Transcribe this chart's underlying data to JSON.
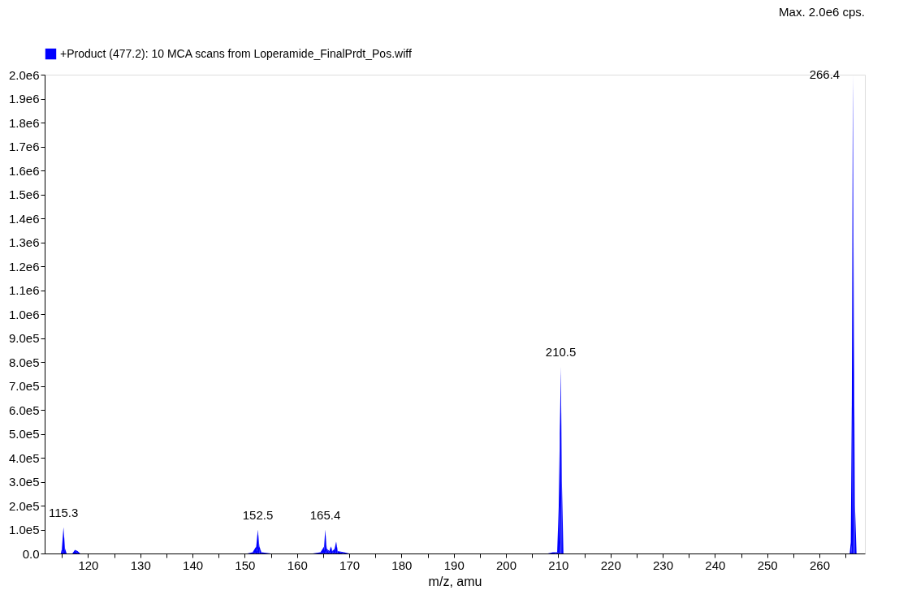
{
  "chart_data": {
    "type": "area",
    "title": "Max. 2.0e6 cps.",
    "xlabel": "m/z, amu",
    "series": [
      {
        "name": "+Product (477.2): 10 MCA scans from Loperamide_FinalPrdt_Pos.wiff",
        "color": "#0000ff",
        "x": [
          111.8,
          114.8,
          115.0,
          115.3,
          115.6,
          115.9,
          117.0,
          117.5,
          118.0,
          118.5,
          150.5,
          151.5,
          152.2,
          152.5,
          152.8,
          153.2,
          155.0,
          163.0,
          164.5,
          165.2,
          165.4,
          165.7,
          166.2,
          166.5,
          166.8,
          167.2,
          167.5,
          167.8,
          169.0,
          170.0,
          208.0,
          209.0,
          209.8,
          210.1,
          210.3,
          210.5,
          210.7,
          211.0,
          265.8,
          266.0,
          266.2,
          266.4,
          266.6,
          266.8,
          267.1,
          268.5
        ],
        "values": [
          0,
          0,
          20000,
          110000,
          20000,
          0,
          0,
          15000,
          10000,
          0,
          0,
          5000,
          30000,
          100000,
          30000,
          5000,
          0,
          0,
          5000,
          30000,
          100000,
          20000,
          10000,
          30000,
          10000,
          20000,
          50000,
          10000,
          5000,
          0,
          0,
          5000,
          5000,
          200000,
          500000,
          780000,
          300000,
          0,
          0,
          50000,
          650000,
          2000000,
          900000,
          200000,
          0,
          0
        ]
      }
    ],
    "annotations": [
      {
        "text": "115.3",
        "x": 115.3,
        "y": 110000
      },
      {
        "text": "152.5",
        "x": 152.5,
        "y": 100000
      },
      {
        "text": "165.4",
        "x": 165.4,
        "y": 100000
      },
      {
        "text": "210.5",
        "x": 210.5,
        "y": 780000
      },
      {
        "text": "266.4",
        "x": 266.4,
        "y": 2000000
      }
    ],
    "xlim": [
      111.7,
      268.7
    ],
    "ylim": [
      0,
      2000000
    ],
    "xticks": [
      {
        "value": 115,
        "label": null
      },
      120,
      {
        "value": 125,
        "label": null
      },
      130,
      {
        "value": 135,
        "label": null
      },
      140,
      {
        "value": 145,
        "label": null
      },
      150,
      {
        "value": 155,
        "label": null
      },
      160,
      {
        "value": 165,
        "label": null
      },
      170,
      {
        "value": 175,
        "label": null
      },
      180,
      {
        "value": 185,
        "label": null
      },
      190,
      {
        "value": 195,
        "label": null
      },
      200,
      {
        "value": 205,
        "label": null
      },
      210,
      {
        "value": 215,
        "label": null
      },
      220,
      {
        "value": 225,
        "label": null
      },
      230,
      {
        "value": 235,
        "label": null
      },
      240,
      {
        "value": 245,
        "label": null
      },
      250,
      {
        "value": 255,
        "label": null
      },
      260,
      {
        "value": 265,
        "label": null
      }
    ],
    "yticks": [
      {
        "value": 0,
        "label": "0.0"
      },
      {
        "value": 100000,
        "label": "1.0e5"
      },
      {
        "value": 200000,
        "label": "2.0e5"
      },
      {
        "value": 300000,
        "label": "3.0e5"
      },
      {
        "value": 400000,
        "label": "4.0e5"
      },
      {
        "value": 500000,
        "label": "5.0e5"
      },
      {
        "value": 600000,
        "label": "6.0e5"
      },
      {
        "value": 700000,
        "label": "7.0e5"
      },
      {
        "value": 800000,
        "label": "8.0e5"
      },
      {
        "value": 900000,
        "label": "9.0e5"
      },
      {
        "value": 1000000,
        "label": "1.0e6"
      },
      {
        "value": 1100000,
        "label": "1.1e6"
      },
      {
        "value": 1200000,
        "label": "1.2e6"
      },
      {
        "value": 1300000,
        "label": "1.3e6"
      },
      {
        "value": 1400000,
        "label": "1.4e6"
      },
      {
        "value": 1500000,
        "label": "1.5e6"
      },
      {
        "value": 1600000,
        "label": "1.6e6"
      },
      {
        "value": 1700000,
        "label": "1.7e6"
      },
      {
        "value": 1800000,
        "label": "1.8e6"
      },
      {
        "value": 1900000,
        "label": "1.9e6"
      },
      {
        "value": 2000000,
        "label": "2.0e6"
      }
    ],
    "legend": "top left",
    "grid": false,
    "marker": "none"
  }
}
